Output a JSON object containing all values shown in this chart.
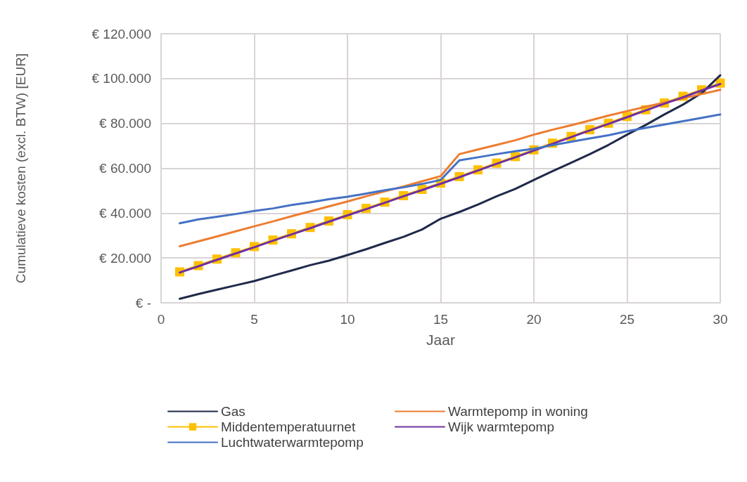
{
  "chart_data": {
    "type": "line",
    "xlabel": "Jaar",
    "ylabel": "Cumulatieve kosten (excl. BTW) [EUR]",
    "x": [
      1,
      2,
      3,
      4,
      5,
      6,
      7,
      8,
      9,
      10,
      11,
      12,
      13,
      14,
      15,
      16,
      17,
      18,
      19,
      20,
      21,
      22,
      23,
      24,
      25,
      26,
      27,
      28,
      29,
      30
    ],
    "xlim": [
      0,
      30
    ],
    "xticks": [
      0,
      5,
      10,
      15,
      20,
      25,
      30
    ],
    "ylim": [
      0,
      120000
    ],
    "yticks": [
      {
        "value": 0,
        "label": "€ -"
      },
      {
        "value": 20000,
        "label": "€ 20.000"
      },
      {
        "value": 40000,
        "label": "€ 40.000"
      },
      {
        "value": 60000,
        "label": "€ 60.000"
      },
      {
        "value": 80000,
        "label": "€ 80.000"
      },
      {
        "value": 100000,
        "label": "€ 100.000"
      },
      {
        "value": 120000,
        "label": "€ 120.000"
      }
    ],
    "grid": true,
    "legend": "bottom",
    "line_style": "solid",
    "series": [
      {
        "name": "Gas",
        "color": "#1f2a4b",
        "marker": "none",
        "values": [
          1800,
          3900,
          5900,
          7800,
          9700,
          12100,
          14400,
          16800,
          18800,
          21300,
          23900,
          26700,
          29400,
          32700,
          37500,
          40500,
          43800,
          47500,
          50800,
          54800,
          58700,
          62500,
          66300,
          70400,
          75000,
          79300,
          84000,
          88400,
          93500,
          101500
        ]
      },
      {
        "name": "Warmtepomp in woning",
        "color": "#ed7d31",
        "marker": "none",
        "values": [
          25200,
          27400,
          29600,
          31900,
          34100,
          36300,
          38600,
          40800,
          43000,
          45200,
          47500,
          49700,
          51900,
          54200,
          56500,
          66300,
          68400,
          70400,
          72500,
          75000,
          77200,
          79200,
          81300,
          83500,
          85500,
          87400,
          89300,
          91200,
          93100,
          95000
        ]
      },
      {
        "name": "Middentemperatuurnet",
        "color": "#ffc000",
        "marker": "square",
        "values": [
          13800,
          16600,
          19500,
          22300,
          25100,
          28000,
          30800,
          33600,
          36500,
          39300,
          42100,
          44900,
          47800,
          50600,
          53400,
          56300,
          59300,
          62300,
          65200,
          68200,
          71200,
          74200,
          77200,
          80100,
          83100,
          86100,
          89100,
          92100,
          95000,
          98000
        ]
      },
      {
        "name": "Wijk warmtepomp",
        "color": "#7030a0",
        "marker": "none",
        "values": [
          13500,
          16300,
          19200,
          22000,
          24800,
          27700,
          30500,
          33300,
          36200,
          39000,
          41800,
          44600,
          47500,
          50300,
          53100,
          56000,
          59000,
          62000,
          64900,
          67900,
          70900,
          73900,
          76900,
          79800,
          82800,
          85800,
          88800,
          91700,
          94700,
          97600
        ]
      },
      {
        "name": "Luchtwaterwarmtepomp",
        "color": "#4472c4",
        "marker": "none",
        "values": [
          35500,
          37200,
          38400,
          39600,
          41000,
          42100,
          43600,
          44800,
          46200,
          47300,
          48700,
          50200,
          51500,
          53000,
          54800,
          63500,
          64900,
          66300,
          67600,
          68700,
          70300,
          71800,
          73300,
          74700,
          76500,
          78000,
          79500,
          81000,
          82500,
          84000
        ]
      }
    ]
  }
}
